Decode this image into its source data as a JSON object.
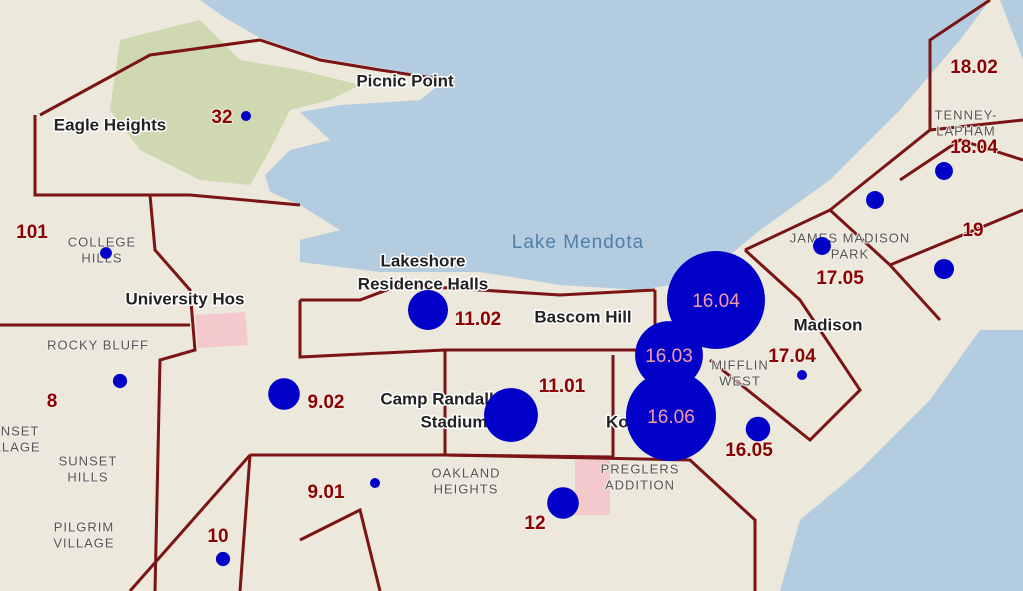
{
  "map": {
    "water_labels": [
      "Lake Mendota"
    ],
    "places": [
      "Picnic Point",
      "Eagle Heights",
      "University Hos",
      "Lakeshore",
      "Residence Halls",
      "Bascom Hill",
      "Camp Randall",
      "Stadium",
      "Madison",
      "Ko"
    ],
    "neighborhoods": [
      [
        "COLLEGE",
        "HILLS"
      ],
      [
        "ROCKY BLUFF"
      ],
      [
        "SUNSET",
        "VILLAGE"
      ],
      [
        "SUNSET",
        "HILLS"
      ],
      [
        "PILGRIM",
        "VILLAGE"
      ],
      [
        "OAKLAND",
        "HEIGHTS"
      ],
      [
        "PREGLERS",
        "ADDITION"
      ],
      [
        "JAMES MADISON",
        "PARK"
      ],
      [
        "TENNEY-",
        "LAPHAM"
      ],
      [
        "MIFFLIN",
        "WEST"
      ]
    ],
    "tracts": [
      {
        "label": "32",
        "value": 1
      },
      {
        "label": "101",
        "value": 1.4
      },
      {
        "label": "8",
        "value": 2
      },
      {
        "label": "9.02",
        "value": 10
      },
      {
        "label": "9.01",
        "value": 1
      },
      {
        "label": "10",
        "value": 2
      },
      {
        "label": "11.02",
        "value": 16
      },
      {
        "label": "11.01",
        "value": 29
      },
      {
        "label": "12",
        "value": 10
      },
      {
        "label": "16.04",
        "value": 96
      },
      {
        "label": "16.03",
        "value": 46
      },
      {
        "label": "16.06",
        "value": 81
      },
      {
        "label": "16.05",
        "value": 6
      },
      {
        "label": "17.05",
        "value": 3.2
      },
      {
        "label": "17.04",
        "value": 1
      },
      {
        "label": "18.02",
        "value": null
      },
      {
        "label": "18.04",
        "value": 3.2
      },
      {
        "label": "19",
        "value": 4
      },
      {
        "label": null,
        "value": 3.2
      }
    ]
  }
}
